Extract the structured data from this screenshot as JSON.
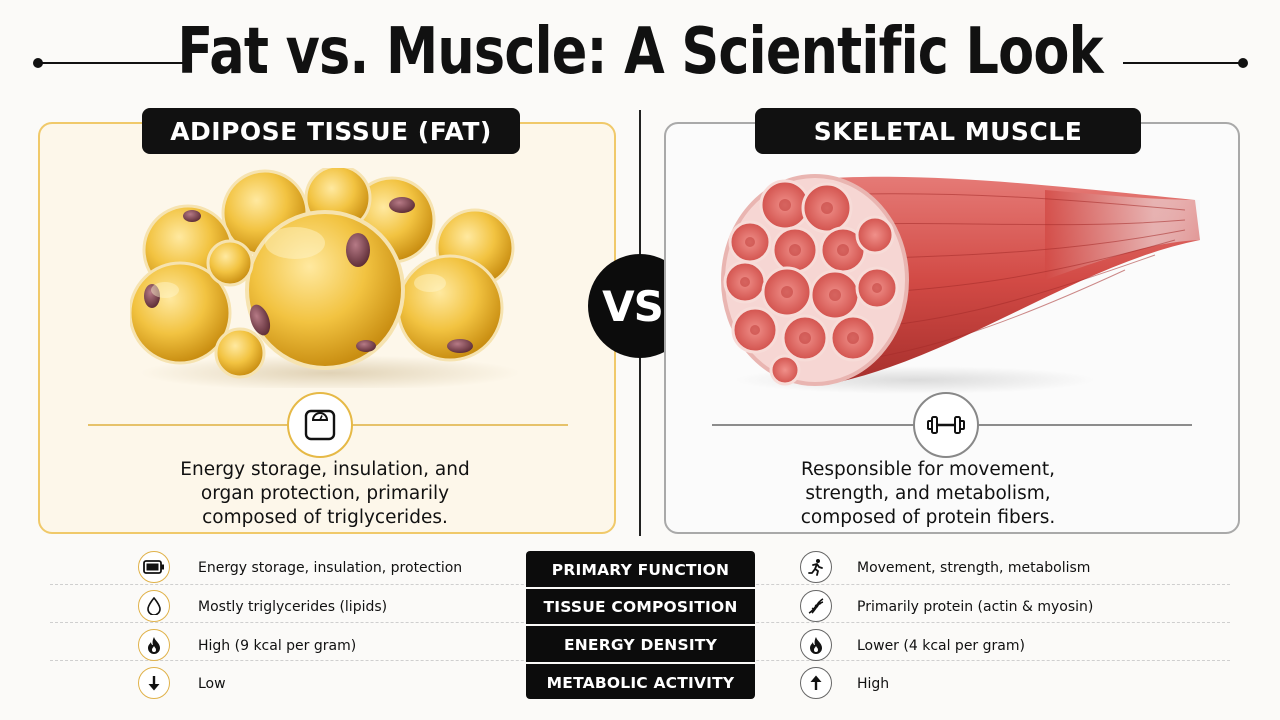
{
  "title": "Fat vs. Muscle: A Scientific Look",
  "vs_label": "VS.",
  "fat": {
    "label": "ADIPOSE TISSUE (FAT)",
    "icon": "scale-icon",
    "description": [
      "Energy storage, insulation, and",
      "organ protection, primarily",
      "composed of triglycerides."
    ],
    "accent": "#f0c96a"
  },
  "muscle": {
    "label": "SKELETAL MUSCLE",
    "icon": "dumbbell-icon",
    "description": [
      "Responsible for movement,",
      "strength, and metabolism,",
      "composed of protein fibers."
    ],
    "accent": "#a9a9a9"
  },
  "comparison": [
    {
      "category": "PRIMARY FUNCTION",
      "fat_icon": "battery-icon",
      "fat": "Energy storage, insulation, protection",
      "muscle_icon": "runner-icon",
      "muscle": "Movement, strength, metabolism"
    },
    {
      "category": "TISSUE COMPOSITION",
      "fat_icon": "droplet-icon",
      "fat": "Mostly triglycerides (lipids)",
      "muscle_icon": "dna-icon",
      "muscle": "Primarily protein (actin & myosin)"
    },
    {
      "category": "ENERGY DENSITY",
      "fat_icon": "flame-icon",
      "fat": "High (9 kcal per gram)",
      "muscle_icon": "flame-icon",
      "muscle": "Lower (4 kcal per gram)"
    },
    {
      "category": "METABOLIC ACTIVITY",
      "fat_icon": "arrow-down-icon",
      "fat": "Low",
      "muscle_icon": "arrow-up-icon",
      "muscle": "High"
    }
  ]
}
